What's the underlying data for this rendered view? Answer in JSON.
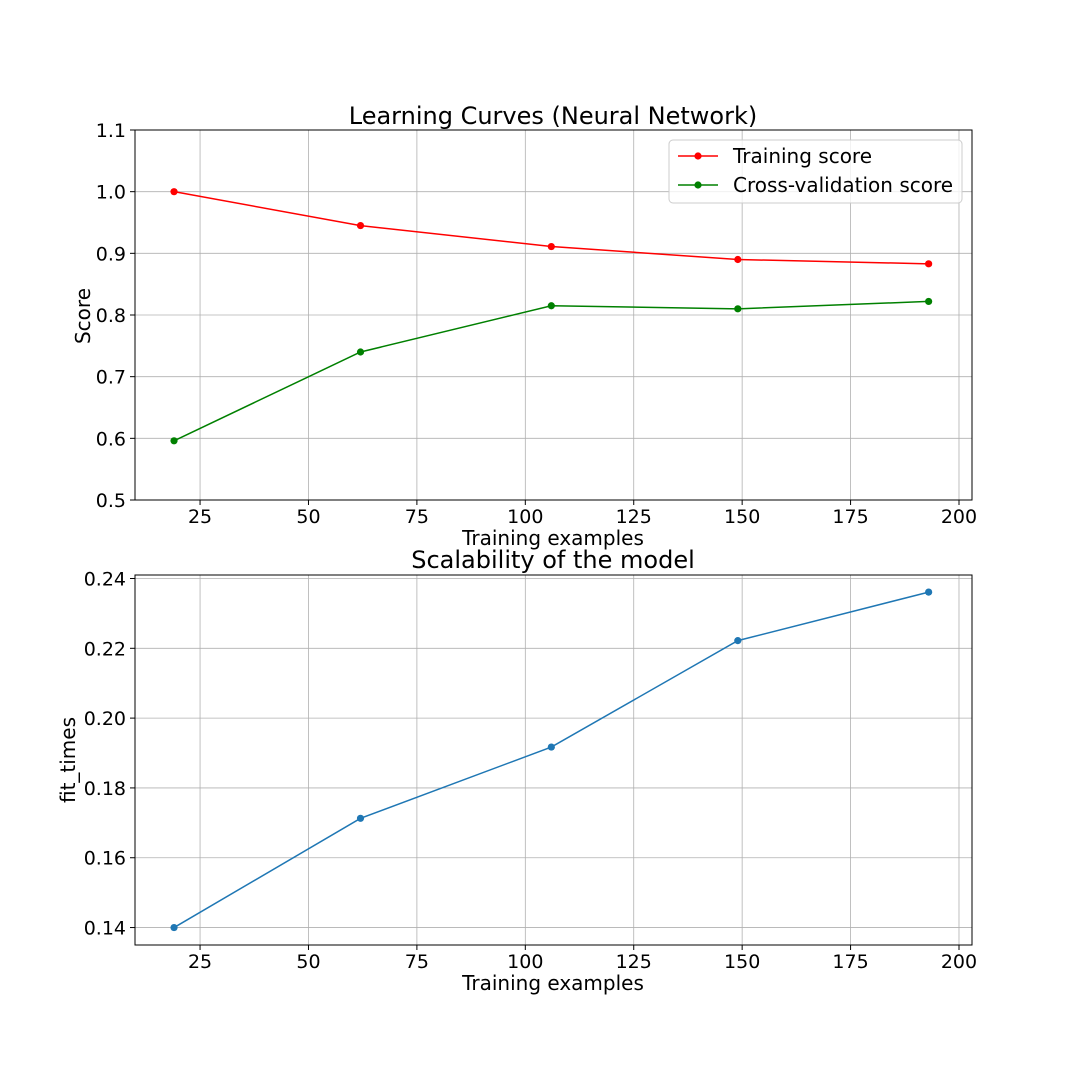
{
  "chart_data": [
    {
      "type": "line",
      "title": "Learning Curves (Neural Network)",
      "xlabel": "Training examples",
      "ylabel": "Score",
      "xlim": [
        10,
        203
      ],
      "ylim": [
        0.5,
        1.1
      ],
      "xticks": [
        25,
        50,
        75,
        100,
        125,
        150,
        175,
        200
      ],
      "xtick_labels": [
        "25",
        "50",
        "75",
        "100",
        "125",
        "150",
        "175",
        "200"
      ],
      "yticks": [
        0.5,
        0.6,
        0.7,
        0.8,
        0.9,
        1.0,
        1.1
      ],
      "ytick_labels": [
        "0.5",
        "0.6",
        "0.7",
        "0.8",
        "0.9",
        "1.0",
        "1.1"
      ],
      "grid": true,
      "legend": "top-right",
      "x": [
        19,
        62,
        106,
        149,
        193
      ],
      "series": [
        {
          "name": "Training score",
          "color": "#ff0000",
          "values": [
            1.0,
            0.945,
            0.911,
            0.89,
            0.883
          ]
        },
        {
          "name": "Cross-validation score",
          "color": "#008000",
          "values": [
            0.596,
            0.74,
            0.815,
            0.81,
            0.822
          ]
        }
      ]
    },
    {
      "type": "line",
      "title": "Scalability of the model",
      "xlabel": "Training examples",
      "ylabel": "fit_times",
      "xlim": [
        10,
        203
      ],
      "ylim": [
        0.135,
        0.241
      ],
      "xticks": [
        25,
        50,
        75,
        100,
        125,
        150,
        175,
        200
      ],
      "xtick_labels": [
        "25",
        "50",
        "75",
        "100",
        "125",
        "150",
        "175",
        "200"
      ],
      "yticks": [
        0.14,
        0.16,
        0.18,
        0.2,
        0.22,
        0.24
      ],
      "ytick_labels": [
        "0.14",
        "0.16",
        "0.18",
        "0.20",
        "0.22",
        "0.24"
      ],
      "grid": true,
      "x": [
        19,
        62,
        106,
        149,
        193
      ],
      "series": [
        {
          "color": "#1f77b4",
          "values": [
            0.14,
            0.1713,
            0.1917,
            0.2222,
            0.2361
          ]
        }
      ]
    }
  ]
}
